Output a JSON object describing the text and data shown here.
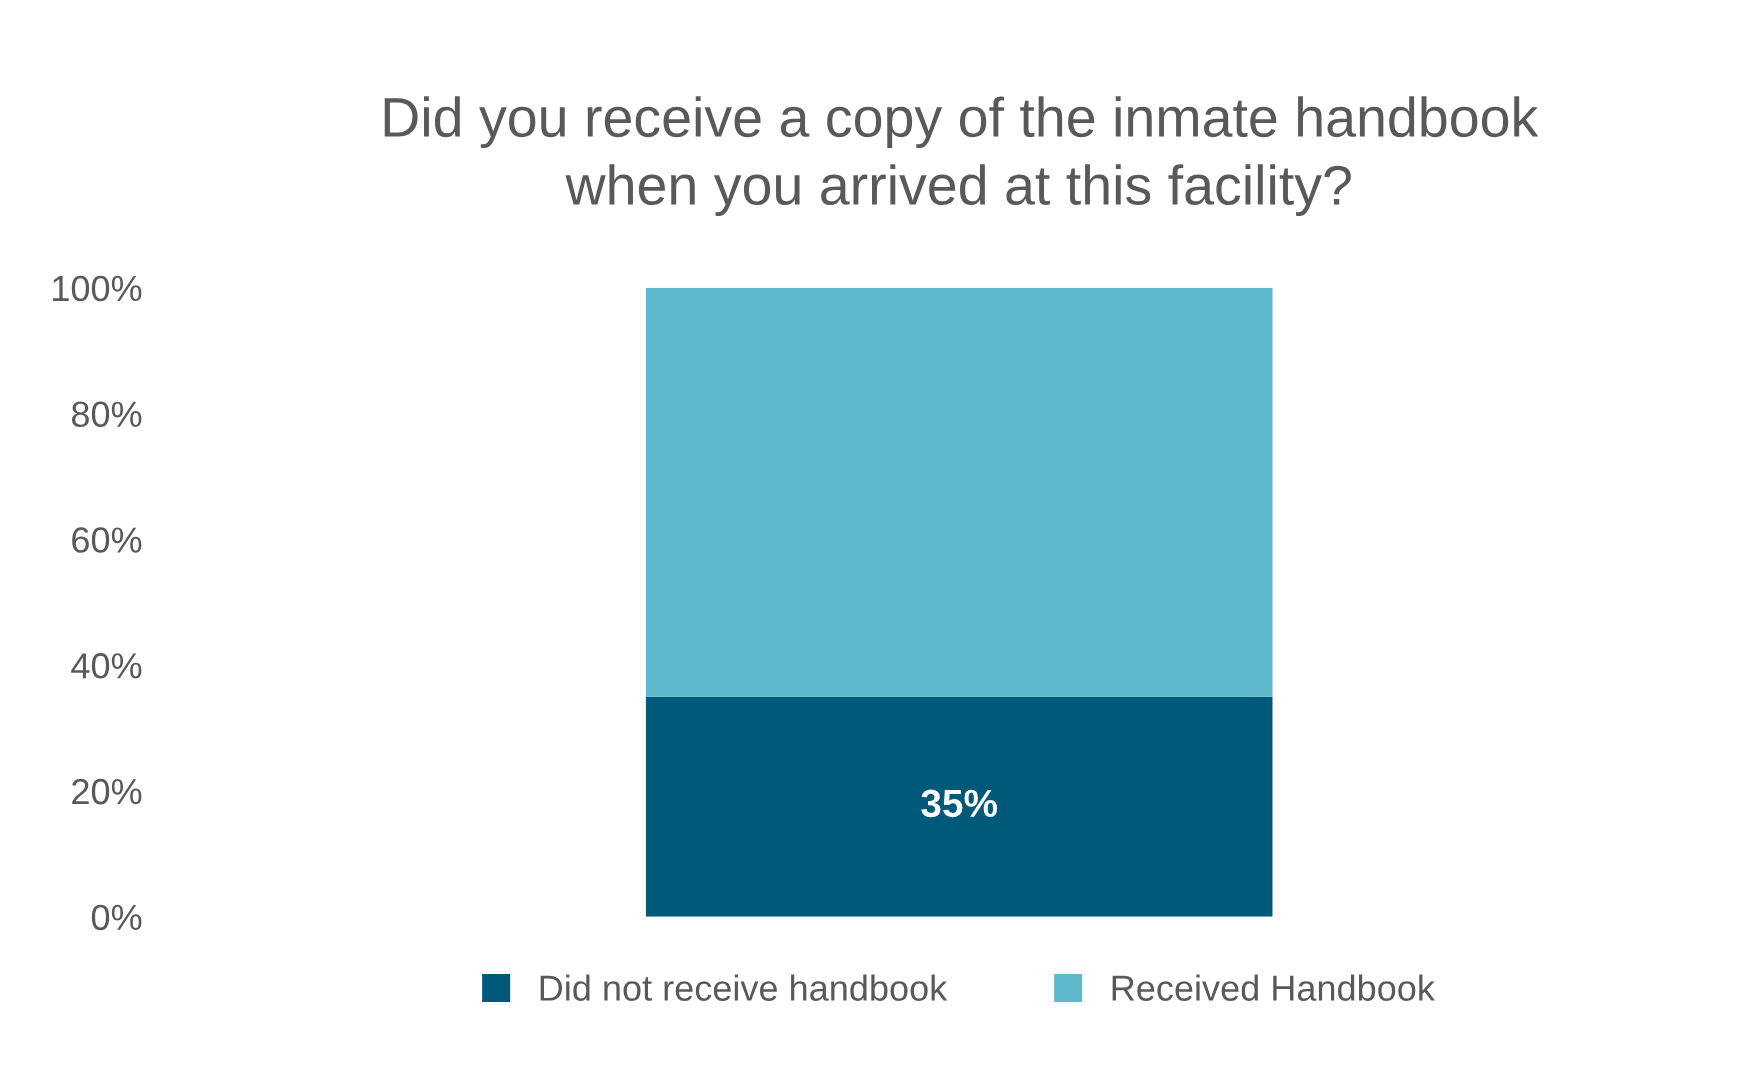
{
  "chart_data": {
    "type": "bar",
    "stacked": true,
    "title": "Did you receive a copy of the inmate handbook\nwhen you arrived at this facility?",
    "categories": [
      null
    ],
    "series": [
      {
        "name": "Did not receive handbook",
        "color": "#01597a",
        "values": [
          35
        ],
        "value_labels": [
          "35%"
        ]
      },
      {
        "name": "Received Handbook",
        "color": "#5fb8cc",
        "values": [
          65
        ],
        "value_labels": [
          null
        ]
      }
    ],
    "ylim": [
      0,
      100
    ],
    "yticks": [
      {
        "value": 0,
        "label": "0%"
      },
      {
        "value": 20,
        "label": "20%"
      },
      {
        "value": 40,
        "label": "40%"
      },
      {
        "value": 60,
        "label": "60%"
      },
      {
        "value": 80,
        "label": "80%"
      },
      {
        "value": 100,
        "label": "100%"
      }
    ],
    "tick_labels": "y",
    "grid": false,
    "legend": "bottom"
  }
}
